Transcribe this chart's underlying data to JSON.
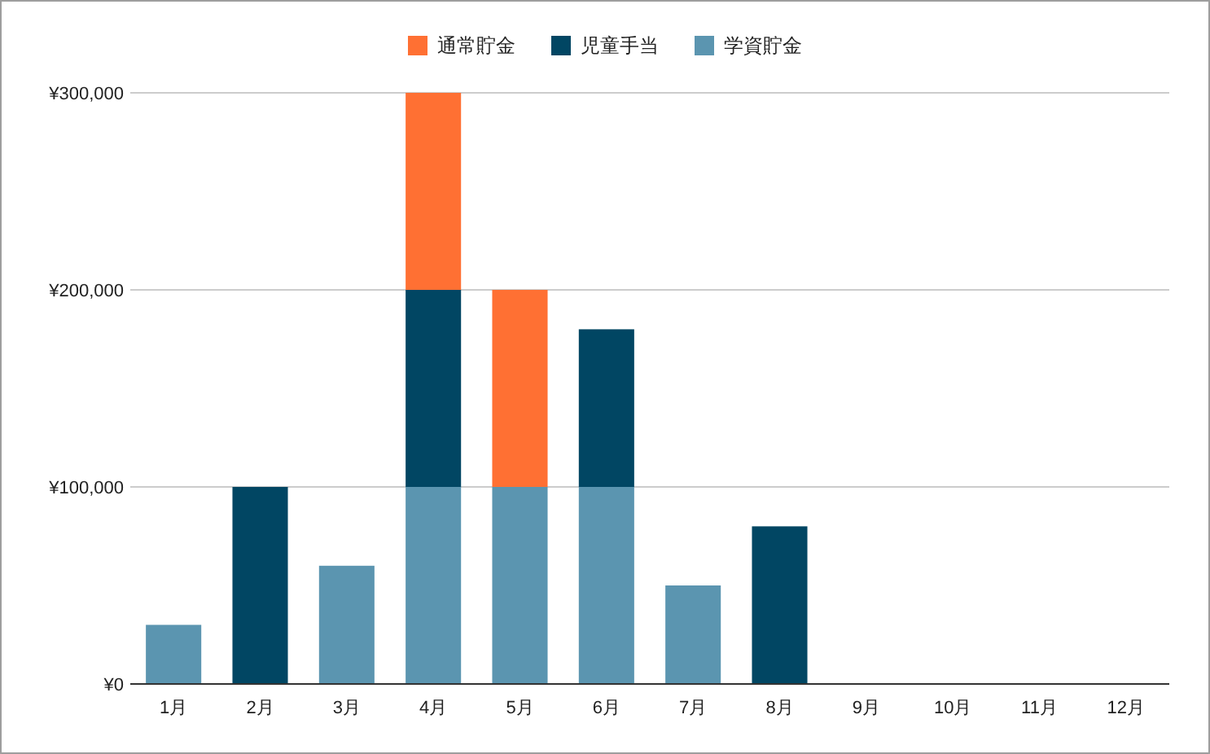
{
  "chart_data": {
    "type": "bar",
    "stacked": true,
    "categories": [
      "1月",
      "2月",
      "3月",
      "4月",
      "5月",
      "6月",
      "7月",
      "8月",
      "9月",
      "10月",
      "11月",
      "12月"
    ],
    "series": [
      {
        "name": "学資貯金",
        "color": "#5b95b0",
        "values": [
          30000,
          null,
          60000,
          100000,
          100000,
          100000,
          50000,
          null,
          null,
          null,
          null,
          null
        ]
      },
      {
        "name": "児童手当",
        "color": "#014663",
        "values": [
          null,
          100000,
          null,
          100000,
          null,
          80000,
          null,
          80000,
          null,
          null,
          null,
          null
        ]
      },
      {
        "name": "通常貯金",
        "color": "#ff7033",
        "values": [
          null,
          null,
          null,
          100000,
          100000,
          null,
          null,
          null,
          null,
          null,
          null,
          null
        ]
      }
    ],
    "ylim": [
      0,
      300000
    ],
    "yticks": [
      {
        "value": 0,
        "label": "¥0"
      },
      {
        "value": 100000,
        "label": "¥100,000"
      },
      {
        "value": 200000,
        "label": "¥200,000"
      },
      {
        "value": 300000,
        "label": "¥300,000"
      }
    ],
    "grid": "y",
    "legend": "top"
  }
}
